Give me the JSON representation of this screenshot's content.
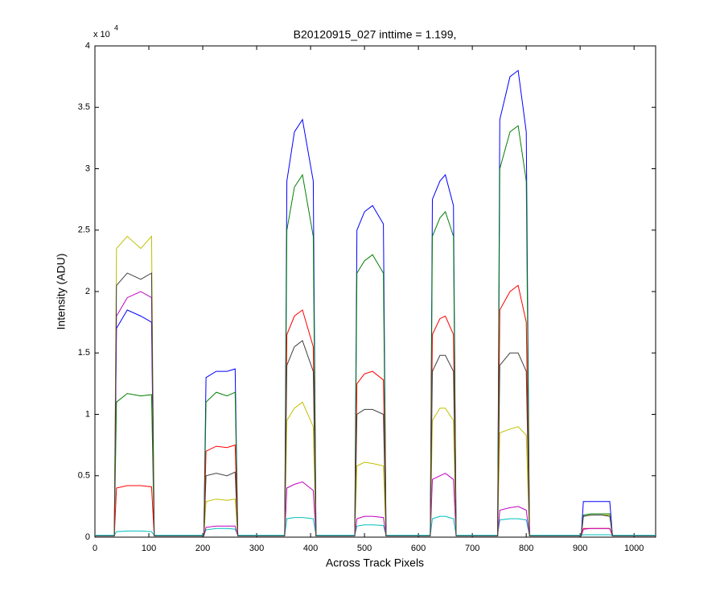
{
  "chart_data": {
    "type": "line",
    "title": "B20120915_027 inttime = 1.199,",
    "x_label": "Across Track Pixels",
    "y_label": "Intensity (ADU)",
    "y_scale_label": {
      "base": "x 10",
      "exponent": "4"
    },
    "xlim": [
      0,
      1040
    ],
    "ylim": [
      0,
      40000
    ],
    "xticks": [
      0,
      100,
      200,
      300,
      400,
      500,
      600,
      700,
      800,
      900,
      1000
    ],
    "yticks": [
      0,
      {
        "value": 5000,
        "label": "0.5"
      },
      {
        "value": 10000,
        "label": "1"
      },
      {
        "value": 15000,
        "label": "1.5"
      },
      {
        "value": 20000,
        "label": "2"
      },
      {
        "value": 25000,
        "label": "2.5"
      },
      {
        "value": 30000,
        "label": "3"
      },
      {
        "value": 35000,
        "label": "3.5"
      },
      {
        "value": 40000,
        "label": "4"
      }
    ],
    "grid": false,
    "x": [
      0,
      36,
      40,
      60,
      85,
      105,
      110,
      202,
      206,
      225,
      245,
      260,
      265,
      352,
      356,
      370,
      385,
      405,
      410,
      482,
      486,
      500,
      515,
      535,
      540,
      622,
      626,
      640,
      650,
      665,
      670,
      747,
      751,
      770,
      785,
      800,
      806,
      902,
      906,
      920,
      940,
      955,
      960,
      1040
    ],
    "series": [
      {
        "color": "#0000ff",
        "values": [
          100,
          100,
          17000,
          18500,
          18000,
          17500,
          100,
          100,
          13000,
          13500,
          13500,
          13700,
          100,
          100,
          29000,
          33000,
          34000,
          29000,
          100,
          100,
          25000,
          26500,
          27000,
          25500,
          100,
          100,
          27500,
          29000,
          29500,
          27000,
          100,
          100,
          34000,
          37500,
          38000,
          33000,
          100,
          100,
          2900,
          2900,
          2900,
          2900,
          100,
          100
        ]
      },
      {
        "color": "#008000",
        "values": [
          100,
          100,
          11000,
          11700,
          11500,
          11600,
          100,
          100,
          11000,
          11800,
          11500,
          11800,
          100,
          100,
          25000,
          28500,
          29500,
          24500,
          100,
          100,
          21500,
          22500,
          23000,
          21500,
          100,
          100,
          24500,
          26000,
          26500,
          24500,
          100,
          100,
          30000,
          33000,
          33500,
          29000,
          100,
          100,
          1800,
          1900,
          1900,
          1900,
          100,
          100
        ]
      },
      {
        "color": "#ff0000",
        "values": [
          100,
          100,
          4000,
          4200,
          4200,
          4100,
          100,
          100,
          7000,
          7400,
          7300,
          7500,
          100,
          100,
          16500,
          18000,
          18500,
          15500,
          100,
          100,
          12500,
          13300,
          13500,
          12800,
          100,
          100,
          16500,
          17800,
          18000,
          16500,
          100,
          100,
          18500,
          20000,
          20500,
          17500,
          100,
          100,
          700,
          700,
          700,
          700,
          100,
          100
        ]
      },
      {
        "color": "#00bfbf",
        "values": [
          150,
          150,
          450,
          500,
          500,
          450,
          150,
          150,
          600,
          700,
          700,
          650,
          150,
          150,
          1500,
          1600,
          1600,
          1500,
          150,
          150,
          900,
          1000,
          1000,
          950,
          150,
          150,
          1500,
          1700,
          1700,
          1500,
          150,
          150,
          1400,
          1500,
          1500,
          1400,
          150,
          150,
          200,
          200,
          200,
          200,
          150,
          150
        ]
      },
      {
        "color": "#bf00bf",
        "values": [
          100,
          100,
          18000,
          19500,
          20000,
          19500,
          100,
          100,
          800,
          900,
          900,
          900,
          100,
          100,
          4000,
          4300,
          4500,
          3800,
          100,
          100,
          1500,
          1700,
          1700,
          1600,
          100,
          100,
          4700,
          5000,
          5200,
          4700,
          100,
          100,
          2200,
          2400,
          2500,
          2200,
          100,
          100,
          650,
          700,
          700,
          700,
          100,
          100
        ]
      },
      {
        "color": "#bfbf00",
        "values": [
          100,
          100,
          23500,
          24500,
          23500,
          24500,
          100,
          100,
          2900,
          3100,
          3000,
          3100,
          100,
          100,
          9500,
          10500,
          11000,
          9000,
          100,
          100,
          5800,
          6100,
          6000,
          5800,
          100,
          100,
          9500,
          10500,
          10500,
          9500,
          100,
          100,
          8500,
          8800,
          9000,
          8300,
          100,
          100,
          1700,
          1800,
          1800,
          1800,
          100,
          100
        ]
      },
      {
        "color": "#404040",
        "values": [
          100,
          100,
          20500,
          21500,
          21000,
          21500,
          100,
          100,
          5000,
          5200,
          5000,
          5300,
          100,
          100,
          14000,
          15500,
          16000,
          13500,
          100,
          100,
          10000,
          10400,
          10400,
          10000,
          100,
          100,
          13500,
          14800,
          14800,
          13500,
          100,
          100,
          14000,
          15000,
          15000,
          13500,
          100,
          100,
          1700,
          1800,
          1800,
          1700,
          100,
          100
        ]
      }
    ]
  }
}
